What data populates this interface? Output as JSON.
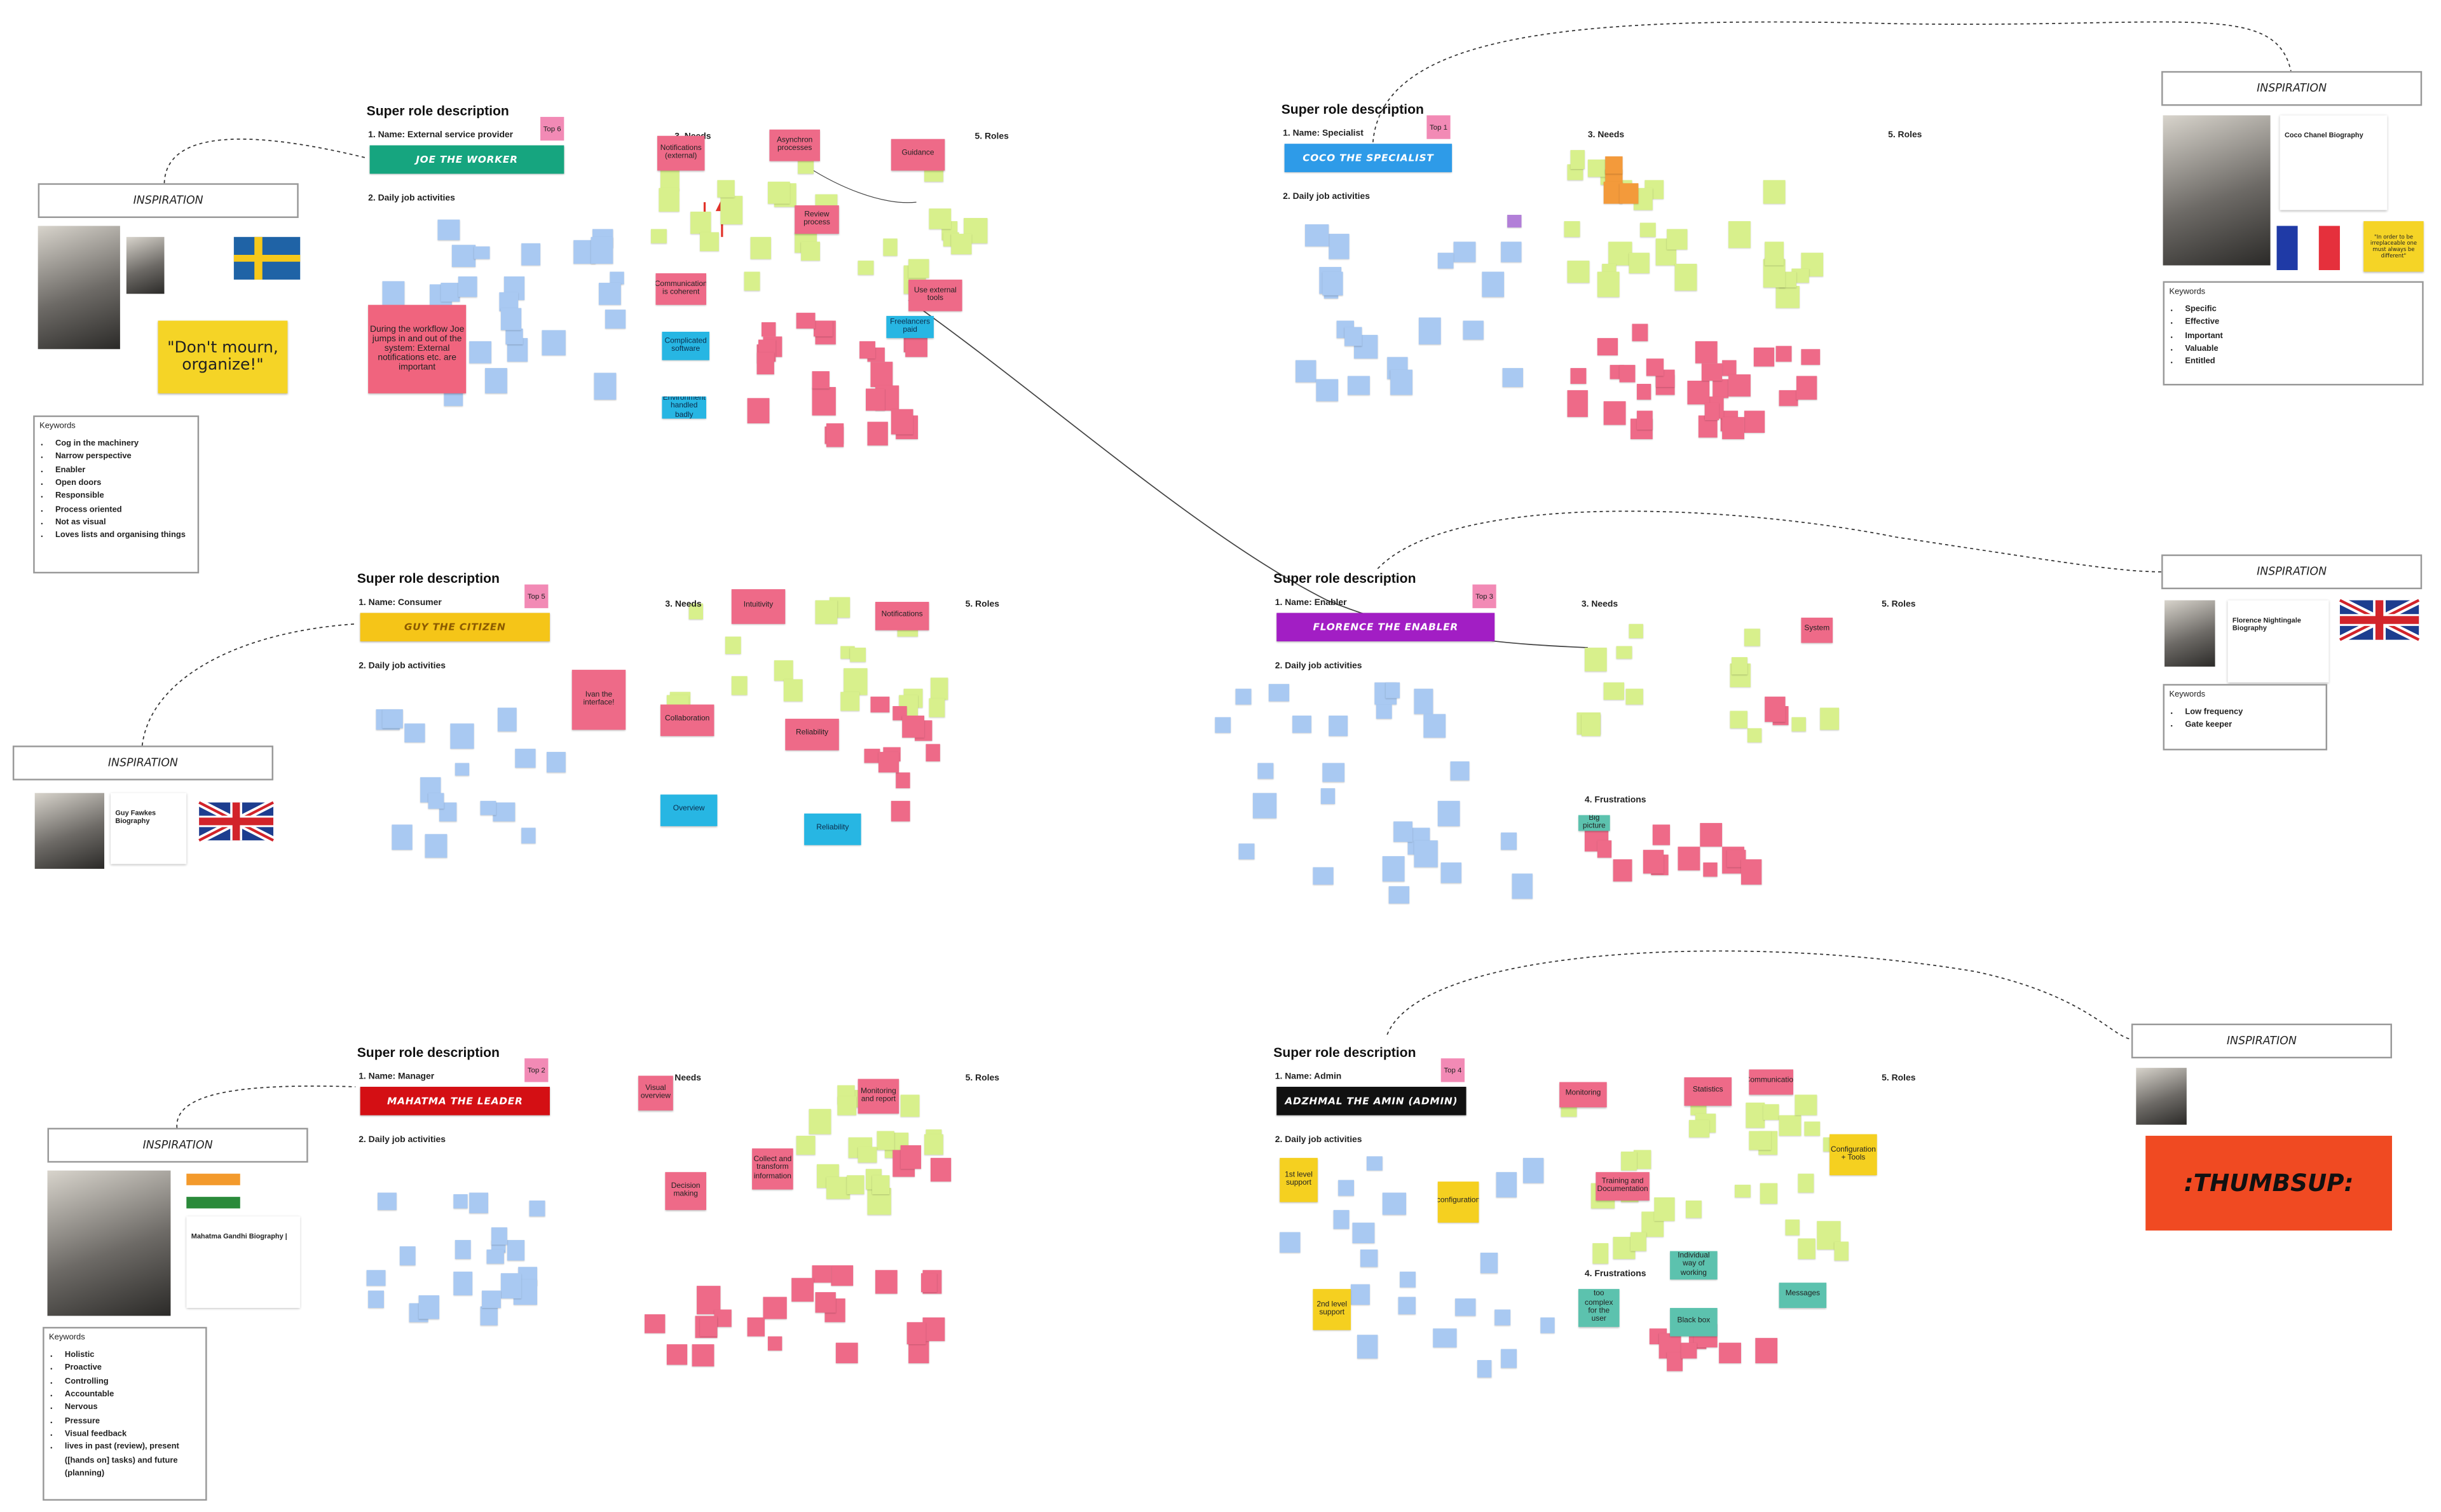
{
  "boards": [
    {
      "title": "Super role description",
      "name": "1. Name: External service provider",
      "persona": "JOE THE WORKER",
      "rank": "Top 6",
      "daily": "2. Daily job activities",
      "needs": "3. Needs",
      "roles": "5. Roles",
      "stickies": [
        "Notifications (external)",
        "Asynchron processes",
        "Guidance",
        "Review process",
        "Communication is coherent",
        "Use external tools",
        "Freelancers paid",
        "Complicated software",
        "Environment handled badly",
        "During the workflow Joe jumps in and out of the system: External notifications etc. are important"
      ]
    },
    {
      "title": "Super role description",
      "name": "1. Name: Specialist",
      "persona": "COCO THE SPECIALIST",
      "rank": "Top 1",
      "daily": "2. Daily job activities",
      "needs": "3. Needs",
      "roles": "5. Roles",
      "stickies": []
    },
    {
      "title": "Super role description",
      "name": "1. Name: Consumer",
      "persona": "GUY THE CITIZEN",
      "rank": "Top 5",
      "daily": "2. Daily job activities",
      "needs": "3. Needs",
      "roles": "5. Roles",
      "stickies": [
        "Intuitivity",
        "Notifications",
        "Collaboration",
        "Reliability",
        "Reliability",
        "Overview",
        "Ivan the interface!"
      ]
    },
    {
      "title": "Super role description",
      "name": "1. Name: Enabler",
      "persona": "FLORENCE THE ENABLER",
      "rank": "Top 3",
      "daily": "2. Daily job activities",
      "needs": "3. Needs",
      "roles": "5. Roles",
      "frustrations": "4. Frustrations",
      "stickies": [
        "System",
        "Big picture"
      ]
    },
    {
      "title": "Super role description",
      "name": "1. Name: Manager",
      "persona": "MAHATMA THE LEADER",
      "rank": "Top 2",
      "daily": "2. Daily job activities",
      "needs": "Needs",
      "roles": "5. Roles",
      "stickies": [
        "Visual overview",
        "Monitoring and report",
        "Decision making",
        "Collect and transform information"
      ]
    },
    {
      "title": "Super role description",
      "name": "1. Name: Admin",
      "persona": "ADZHMAL THE AMIN (ADMIN)",
      "rank": "Top 4",
      "daily": "2. Daily job activities",
      "roles": "5. Roles",
      "frustrations": "4. Frustrations",
      "stickies": [
        "1st level support",
        "2nd level support",
        "Monitoring",
        "Statistics",
        "Configuration + Tools",
        "Training and Documentation",
        "Individual way of working",
        "Black box",
        "Messages",
        "too complex for the user",
        "configuration",
        "Communication"
      ]
    }
  ],
  "inspirations": [
    {
      "title": "INSPIRATION",
      "quote": "\"Don't mourn, organize!\"",
      "keywords_title": "Keywords",
      "keywords": [
        "Cog in the machinery",
        "Narrow perspective",
        "Enabler",
        "Open doors",
        "Responsible",
        "Process oriented",
        "Not as visual",
        "Loves lists and organising things"
      ]
    },
    {
      "title": "INSPIRATION",
      "card": "Coco Chanel Biography",
      "quote": "\"In order to be irreplaceable one must always be different\"",
      "keywords_title": "Keywords",
      "keywords": [
        "Specific",
        "Effective",
        "Important",
        "Valuable",
        "Entitled"
      ]
    },
    {
      "title": "INSPIRATION",
      "card": "Guy Fawkes Biography"
    },
    {
      "title": "INSPIRATION",
      "card": "Florence Nightingale Biography",
      "keywords_title": "Keywords",
      "keywords": [
        "Low frequency",
        "Gate keeper"
      ]
    },
    {
      "title": "INSPIRATION",
      "card": "Mahatma Gandhi Biography |",
      "keywords_title": "Keywords",
      "keywords": [
        "Holistic",
        "Proactive",
        "Controlling",
        "Accountable",
        "Nervous",
        "Pressure",
        "Visual feedback",
        "lives in past (review), present ([hands on] tasks) and future (planning)"
      ]
    },
    {
      "title": "INSPIRATION",
      "badge": ":THUMBSUP:"
    }
  ]
}
